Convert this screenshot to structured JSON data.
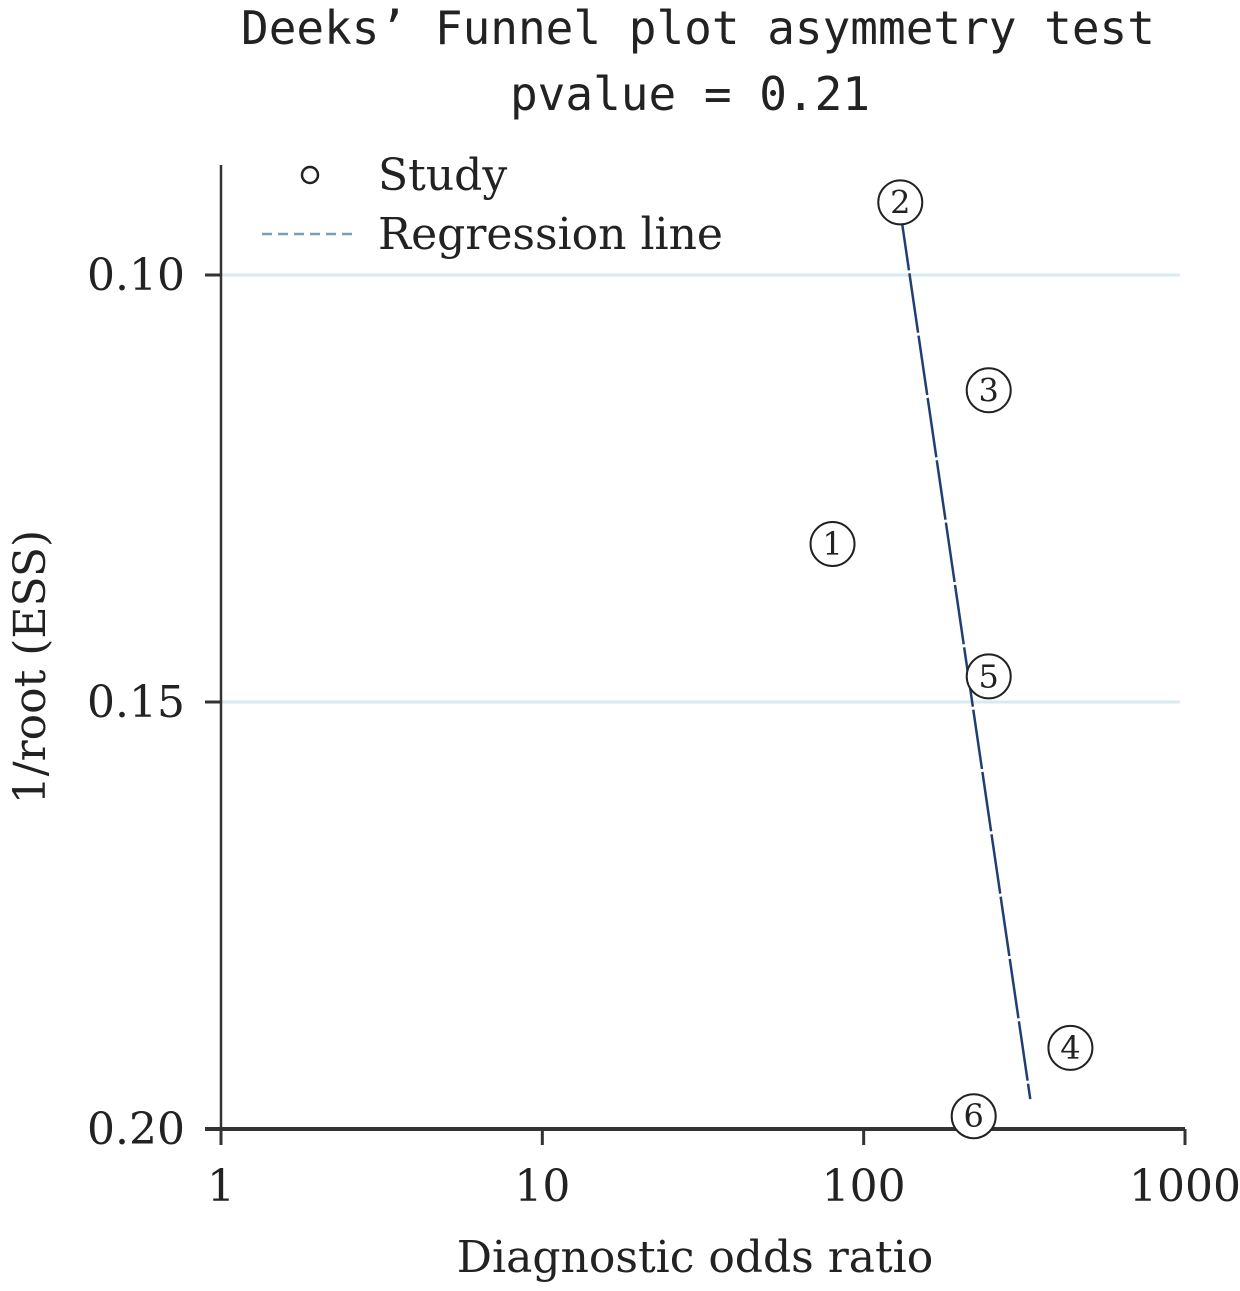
{
  "chart_data": {
    "type": "scatter",
    "title": "Deeks’ Funnel plot asymmetry test",
    "subtitle": "pvalue = 0.21",
    "xlabel": "Diagnostic odds ratio",
    "ylabel": "1/root (ESS)",
    "x_scale": "log",
    "xlim": [
      1,
      1000
    ],
    "ylim": [
      0.2,
      0.088
    ],
    "y_inverted": true,
    "x_ticks": [
      1,
      10,
      100,
      1000
    ],
    "x_tick_labels": [
      "1",
      "10",
      "100",
      "1000"
    ],
    "y_ticks": [
      0.1,
      0.15,
      0.2
    ],
    "y_tick_labels": [
      "0.10",
      "0.15",
      "0.20"
    ],
    "grid": "horizontal at 0.10 and 0.15",
    "legend": {
      "position": "top-left",
      "entries": [
        {
          "label": "Study",
          "marker": "circle"
        },
        {
          "label": "Regression line",
          "style": "dashed"
        }
      ]
    },
    "points": [
      {
        "label": "①",
        "x": 80,
        "y": 0.1315
      },
      {
        "label": "②",
        "x": 130,
        "y": 0.0915
      },
      {
        "label": "③",
        "x": 245,
        "y": 0.1135
      },
      {
        "label": "④",
        "x": 440,
        "y": 0.1905
      },
      {
        "label": "⑤",
        "x": 245,
        "y": 0.147
      },
      {
        "label": "⑥",
        "x": 220,
        "y": 0.1985
      }
    ],
    "regression_line": {
      "x": [
        130,
        330
      ],
      "y": [
        0.0925,
        0.1965
      ]
    },
    "colors": {
      "regression": "#1f3f73",
      "grid": "#d6ecec",
      "axis": "#333333"
    }
  }
}
